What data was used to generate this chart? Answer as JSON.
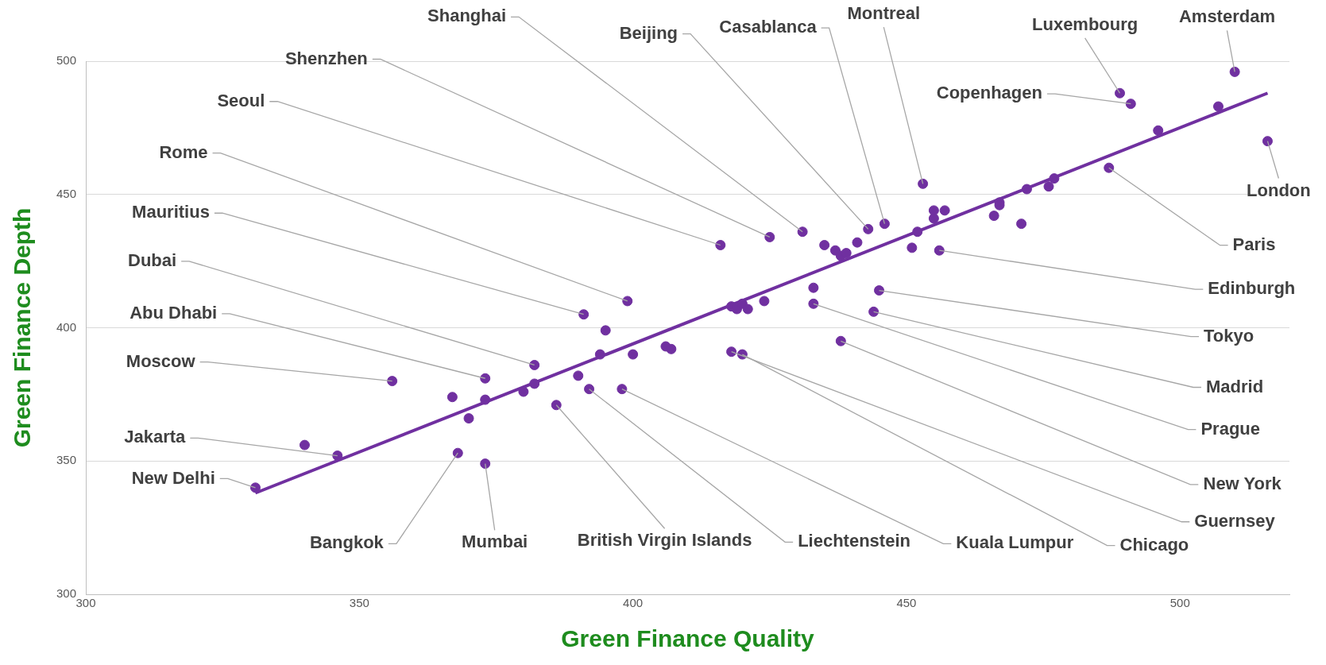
{
  "chart_data": {
    "type": "scatter",
    "xlabel": "Green Finance Quality",
    "ylabel": "Green Finance Depth",
    "xlim": [
      300,
      520
    ],
    "ylim": [
      300,
      500
    ],
    "xticks": [
      300,
      350,
      400,
      450,
      500
    ],
    "yticks": [
      300,
      350,
      400,
      450,
      500
    ],
    "grid": "y",
    "legend": false,
    "series": [
      {
        "type": "scatter",
        "color": "#7030a0",
        "marker": "circle",
        "x": [
          331,
          346,
          368,
          373,
          356,
          373,
          382,
          391,
          399,
          416,
          425,
          431,
          443,
          446,
          453,
          489,
          491,
          510,
          516,
          487,
          456,
          445,
          444,
          433,
          438,
          418,
          420,
          398,
          392,
          386,
          340,
          367,
          373,
          370,
          380,
          382,
          390,
          394,
          395,
          400,
          406,
          407,
          418,
          419,
          420,
          421,
          424,
          433,
          435,
          437,
          438,
          439,
          441,
          451,
          452,
          455,
          455,
          457,
          466,
          467,
          467,
          471,
          472,
          476,
          477,
          496,
          507
        ],
        "values": [
          340,
          352,
          353,
          349,
          380,
          381,
          386,
          405,
          410,
          431,
          434,
          436,
          437,
          439,
          454,
          488,
          484,
          496,
          470,
          460,
          429,
          414,
          406,
          409,
          395,
          391,
          390,
          377,
          377,
          371,
          356,
          374,
          373,
          366,
          376,
          379,
          382,
          390,
          399,
          390,
          393,
          392,
          408,
          407,
          409,
          407,
          410,
          415,
          431,
          429,
          427,
          428,
          432,
          430,
          436,
          444,
          441,
          444,
          442,
          447,
          446,
          439,
          452,
          453,
          456,
          474,
          483
        ]
      },
      {
        "type": "line",
        "color": "#7030a0",
        "marker": "none",
        "line_style": "solid",
        "x": [
          331,
          516
        ],
        "values": [
          338,
          488
        ]
      }
    ],
    "annotations": [
      {
        "text": "Shanghai",
        "x": 431,
        "y": 436
      },
      {
        "text": "Beijing",
        "x": 443,
        "y": 437
      },
      {
        "text": "Casablanca",
        "x": 446,
        "y": 439
      },
      {
        "text": "Montreal",
        "x": 453,
        "y": 454
      },
      {
        "text": "Luxembourg",
        "x": 489,
        "y": 488
      },
      {
        "text": "Amsterdam",
        "x": 510,
        "y": 496
      },
      {
        "text": "Copenhagen",
        "x": 491,
        "y": 484
      },
      {
        "text": "London",
        "x": 516,
        "y": 470
      },
      {
        "text": "Paris",
        "x": 487,
        "y": 460
      },
      {
        "text": "Edinburgh",
        "x": 456,
        "y": 429
      },
      {
        "text": "Tokyo",
        "x": 445,
        "y": 414
      },
      {
        "text": "Madrid",
        "x": 444,
        "y": 406
      },
      {
        "text": "Prague",
        "x": 433,
        "y": 409
      },
      {
        "text": "New York",
        "x": 438,
        "y": 395
      },
      {
        "text": "Guernsey",
        "x": 418,
        "y": 391
      },
      {
        "text": "Chicago",
        "x": 420,
        "y": 390
      },
      {
        "text": "Kuala Lumpur",
        "x": 398,
        "y": 377
      },
      {
        "text": "Liechtenstein",
        "x": 392,
        "y": 377
      },
      {
        "text": "British Virgin Islands",
        "x": 386,
        "y": 371
      },
      {
        "text": "Mumbai",
        "x": 373,
        "y": 349
      },
      {
        "text": "Bangkok",
        "x": 368,
        "y": 353
      },
      {
        "text": "New Delhi",
        "x": 331,
        "y": 340
      },
      {
        "text": "Jakarta",
        "x": 346,
        "y": 352
      },
      {
        "text": "Moscow",
        "x": 356,
        "y": 380
      },
      {
        "text": "Abu Dhabi",
        "x": 373,
        "y": 381
      },
      {
        "text": "Dubai",
        "x": 382,
        "y": 386
      },
      {
        "text": "Mauritius",
        "x": 391,
        "y": 405
      },
      {
        "text": "Rome",
        "x": 399,
        "y": 410
      },
      {
        "text": "Seoul",
        "x": 416,
        "y": 431
      },
      {
        "text": "Shenzhen",
        "x": 425,
        "y": 434
      }
    ]
  }
}
